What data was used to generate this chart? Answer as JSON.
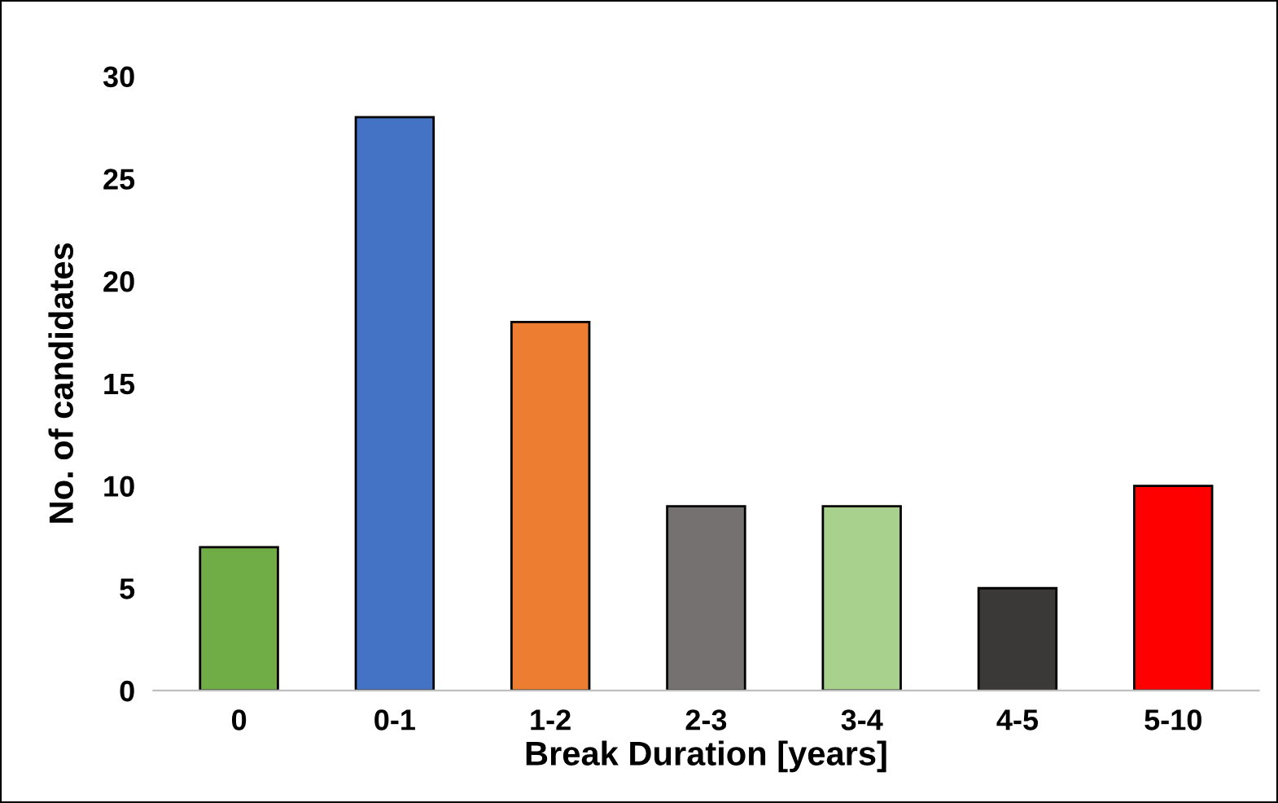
{
  "chart_data": {
    "type": "bar",
    "xlabel": "Break Duration [years]",
    "ylabel": "No. of candidates",
    "categories": [
      "0",
      "0-1",
      "1-2",
      "2-3",
      "3-4",
      "4-5",
      "5-10"
    ],
    "values": [
      7,
      28,
      18,
      9,
      9,
      5,
      10
    ],
    "colors": [
      "#70ad47",
      "#4472c4",
      "#ed7d31",
      "#767171",
      "#a9d18e",
      "#3b3838",
      "#ff0000"
    ],
    "ylim": [
      0,
      30
    ],
    "yticks": [
      0,
      5,
      10,
      15,
      20,
      25,
      30
    ],
    "grid": false,
    "legend": false
  }
}
